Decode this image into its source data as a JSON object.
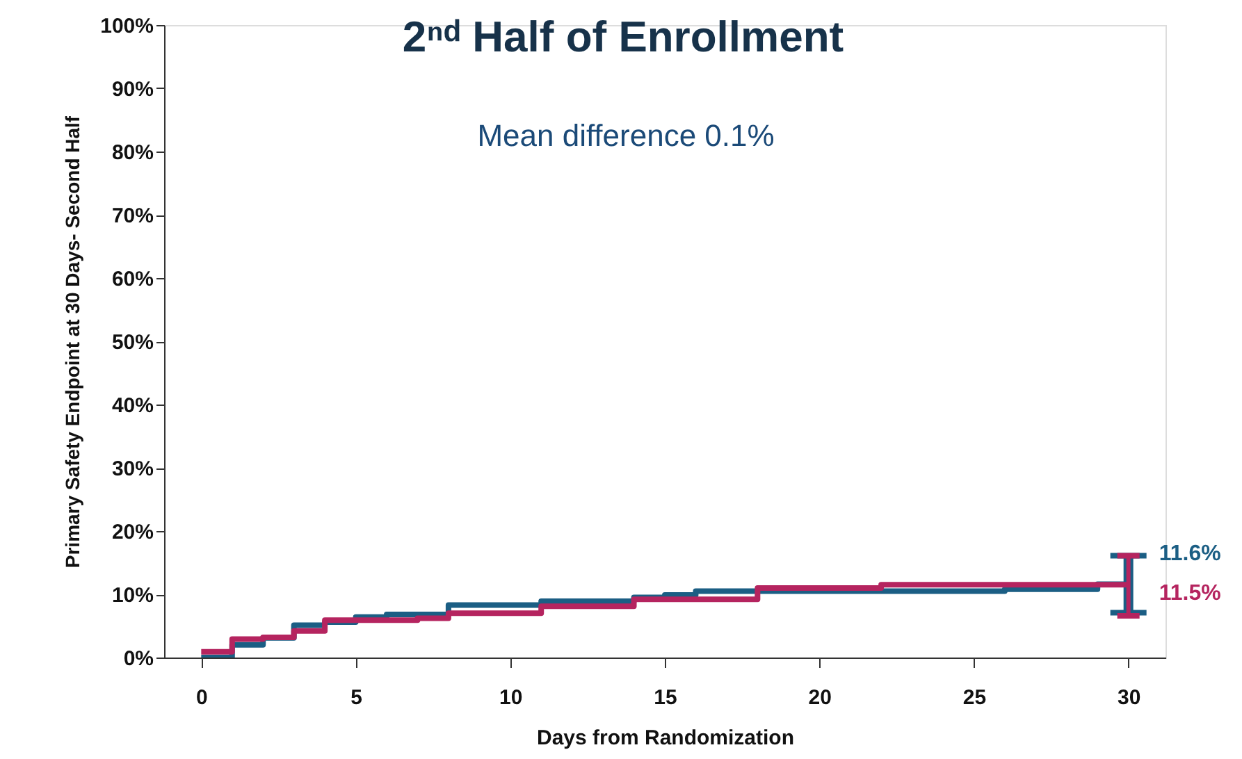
{
  "chart_data": {
    "type": "step",
    "title": "2ⁿᵈ Half of Enrollment",
    "xlabel": "Days from Randomization",
    "ylabel": "Primary Safety Endpoint at 30 Days- Second Half",
    "annotations": [
      "Mean difference 0.1%"
    ],
    "series": [
      {
        "color": "#1b5e84",
        "x": [
          0,
          1,
          2,
          3,
          4,
          5,
          6,
          8,
          11,
          14,
          15,
          16,
          26,
          29,
          30
        ],
        "values": [
          0,
          2.0,
          3.1,
          5.1,
          5.6,
          6.4,
          6.8,
          8.3,
          8.9,
          9.5,
          9.9,
          10.5,
          10.8,
          11.6,
          11.6
        ],
        "errors": [
          null,
          null,
          null,
          null,
          null,
          null,
          null,
          null,
          null,
          null,
          null,
          null,
          null,
          null,
          [
            7.1,
            16.1
          ]
        ],
        "value_labels": [
          null,
          null,
          null,
          null,
          null,
          null,
          null,
          null,
          null,
          null,
          null,
          null,
          null,
          null,
          "11.6%"
        ]
      },
      {
        "color": "#b5245f",
        "x": [
          0,
          1,
          2,
          3,
          4,
          7,
          8,
          11,
          14,
          18,
          22,
          30
        ],
        "values": [
          0.9,
          2.9,
          3.2,
          4.2,
          5.9,
          6.2,
          7.0,
          8.1,
          9.2,
          11.0,
          11.5,
          11.5
        ],
        "errors": [
          null,
          null,
          null,
          null,
          null,
          null,
          null,
          null,
          null,
          null,
          null,
          [
            6.6,
            16.1
          ]
        ],
        "value_labels": [
          null,
          null,
          null,
          null,
          null,
          null,
          null,
          null,
          null,
          null,
          null,
          "11.5%"
        ]
      }
    ],
    "xlim": [
      -1.2,
      31.2
    ],
    "xticks": [
      0,
      5,
      10,
      15,
      20,
      25,
      30
    ],
    "ylim": [
      0,
      100
    ],
    "yticks": [
      {
        "value": 0,
        "label": "0%"
      },
      {
        "value": 10,
        "label": "10%"
      },
      {
        "value": 20,
        "label": "20%"
      },
      {
        "value": 30,
        "label": "30%"
      },
      {
        "value": 40,
        "label": "40%"
      },
      {
        "value": 50,
        "label": "50%"
      },
      {
        "value": 60,
        "label": "60%"
      },
      {
        "value": 70,
        "label": "70%"
      },
      {
        "value": 80,
        "label": "80%"
      },
      {
        "value": 90,
        "label": "90%"
      },
      {
        "value": 100,
        "label": "100%"
      }
    ],
    "grid": false,
    "marker": "none",
    "line_style": "solid"
  }
}
